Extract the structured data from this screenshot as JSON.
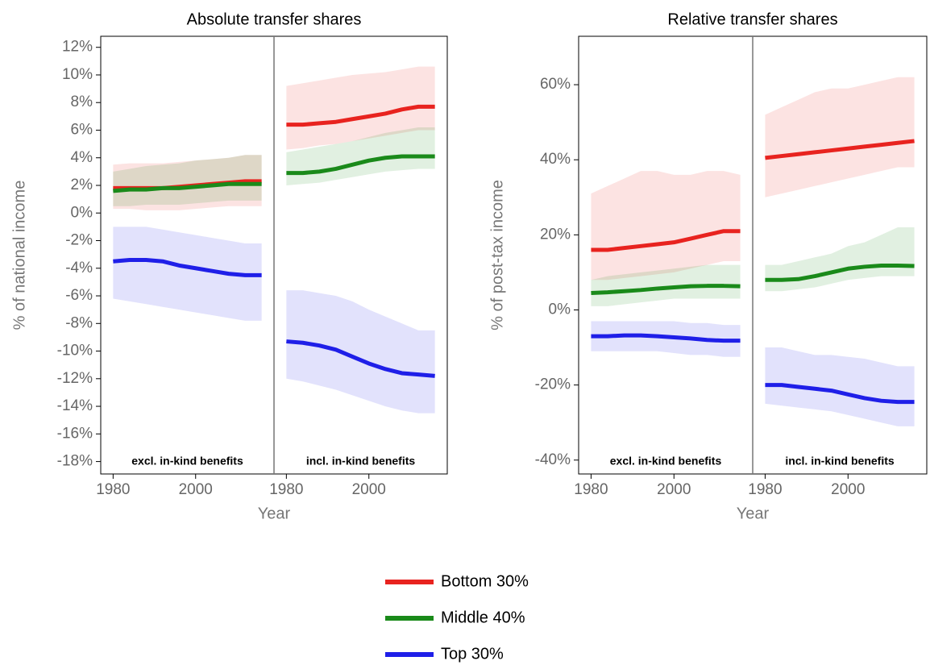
{
  "legend": [
    {
      "name": "Bottom 30%",
      "color": "#e8231f"
    },
    {
      "name": "Middle 40%",
      "color": "#1a8a1a"
    },
    {
      "name": "Top 30%",
      "color": "#1f1fe8"
    }
  ],
  "chart_data": [
    {
      "type": "line",
      "title": "Absolute transfer shares",
      "xlabel": "Year",
      "ylabel": "% of national income",
      "ylim": [
        -18.9,
        12.8
      ],
      "yticks": [
        {
          "value": 12,
          "label": "12%"
        },
        {
          "value": 10,
          "label": "10%"
        },
        {
          "value": 8,
          "label": "8%"
        },
        {
          "value": 6,
          "label": "6%"
        },
        {
          "value": 4,
          "label": "4%"
        },
        {
          "value": 2,
          "label": "2%"
        },
        {
          "value": 0,
          "label": "0%"
        },
        {
          "value": -2,
          "label": "-2%"
        },
        {
          "value": -4,
          "label": "-4%"
        },
        {
          "value": -6,
          "label": "-6%"
        },
        {
          "value": -8,
          "label": "-8%"
        },
        {
          "value": -10,
          "label": "-10%"
        },
        {
          "value": -12,
          "label": "-12%"
        },
        {
          "value": -14,
          "label": "-14%"
        },
        {
          "value": -16,
          "label": "-16%"
        },
        {
          "value": -18,
          "label": "-18%"
        }
      ],
      "xlim": [
        1977,
        2019
      ],
      "xticks": [
        1980,
        2000
      ],
      "x": [
        1980,
        1984,
        1988,
        1992,
        1996,
        2000,
        2004,
        2008,
        2012,
        2016
      ],
      "panels": [
        {
          "label": "excl. in-kind benefits",
          "series": [
            {
              "values": [
                1.8,
                1.8,
                1.8,
                1.8,
                1.9,
                2.0,
                2.1,
                2.2,
                2.3,
                2.3
              ],
              "lower": [
                0.3,
                0.3,
                0.2,
                0.2,
                0.2,
                0.3,
                0.4,
                0.5,
                0.5,
                0.5
              ],
              "upper": [
                3.5,
                3.6,
                3.6,
                3.6,
                3.7,
                3.8,
                3.9,
                4.0,
                4.2,
                4.2
              ]
            },
            {
              "values": [
                1.6,
                1.7,
                1.7,
                1.8,
                1.8,
                1.9,
                2.0,
                2.1,
                2.1,
                2.1
              ],
              "lower": [
                0.5,
                0.5,
                0.6,
                0.6,
                0.6,
                0.7,
                0.8,
                0.9,
                0.9,
                0.9
              ],
              "upper": [
                3.0,
                3.2,
                3.4,
                3.5,
                3.6,
                3.8,
                3.9,
                4.0,
                4.2,
                4.2
              ]
            },
            {
              "values": [
                -3.5,
                -3.4,
                -3.4,
                -3.5,
                -3.8,
                -4.0,
                -4.2,
                -4.4,
                -4.5,
                -4.5
              ],
              "lower": [
                -6.2,
                -6.4,
                -6.6,
                -6.8,
                -7.0,
                -7.2,
                -7.4,
                -7.6,
                -7.8,
                -7.8
              ],
              "upper": [
                -1.0,
                -1.0,
                -1.0,
                -1.2,
                -1.4,
                -1.6,
                -1.8,
                -2.0,
                -2.2,
                -2.2
              ]
            }
          ]
        },
        {
          "label": "incl. in-kind benefits",
          "series": [
            {
              "values": [
                6.4,
                6.4,
                6.5,
                6.6,
                6.8,
                7.0,
                7.2,
                7.5,
                7.7,
                7.7
              ],
              "lower": [
                4.6,
                4.7,
                4.9,
                5.0,
                5.2,
                5.4,
                5.6,
                5.8,
                6.0,
                6.0
              ],
              "upper": [
                9.2,
                9.4,
                9.6,
                9.8,
                10.0,
                10.1,
                10.2,
                10.4,
                10.6,
                10.6
              ]
            },
            {
              "values": [
                2.9,
                2.9,
                3.0,
                3.2,
                3.5,
                3.8,
                4.0,
                4.1,
                4.1,
                4.1
              ],
              "lower": [
                2.0,
                2.1,
                2.2,
                2.4,
                2.6,
                2.8,
                3.0,
                3.1,
                3.2,
                3.2
              ],
              "upper": [
                4.4,
                4.6,
                4.8,
                5.0,
                5.2,
                5.5,
                5.8,
                6.0,
                6.2,
                6.2
              ]
            },
            {
              "values": [
                -9.3,
                -9.4,
                -9.6,
                -9.9,
                -10.4,
                -10.9,
                -11.3,
                -11.6,
                -11.7,
                -11.8
              ],
              "lower": [
                -12.0,
                -12.2,
                -12.5,
                -12.8,
                -13.2,
                -13.6,
                -14.0,
                -14.3,
                -14.5,
                -14.5
              ],
              "upper": [
                -5.6,
                -5.6,
                -5.8,
                -6.0,
                -6.4,
                -7.0,
                -7.5,
                -8.0,
                -8.5,
                -8.5
              ]
            }
          ]
        }
      ]
    },
    {
      "type": "line",
      "title": "Relative transfer shares",
      "xlabel": "Year",
      "ylabel": "% of post-tax income",
      "ylim": [
        -43.7,
        72.9
      ],
      "yticks": [
        {
          "value": 60,
          "label": "60%"
        },
        {
          "value": 40,
          "label": "40%"
        },
        {
          "value": 20,
          "label": "20%"
        },
        {
          "value": 0,
          "label": "0%"
        },
        {
          "value": -20,
          "label": "-20%"
        },
        {
          "value": -40,
          "label": "-40%"
        }
      ],
      "xlim": [
        1977,
        2019
      ],
      "xticks": [
        1980,
        2000
      ],
      "x": [
        1980,
        1984,
        1988,
        1992,
        1996,
        2000,
        2004,
        2008,
        2012,
        2016
      ],
      "panels": [
        {
          "label": "excl. in-kind benefits",
          "series": [
            {
              "values": [
                16,
                16,
                16.5,
                17,
                17.5,
                18,
                19,
                20,
                21,
                21
              ],
              "lower": [
                8,
                8,
                8.5,
                9,
                9.5,
                10,
                11,
                12,
                13,
                13
              ],
              "upper": [
                31,
                33,
                35,
                37,
                37,
                36,
                36,
                37,
                37,
                36
              ]
            },
            {
              "values": [
                4.5,
                4.7,
                5,
                5.3,
                5.7,
                6,
                6.3,
                6.4,
                6.4,
                6.3
              ],
              "lower": [
                1,
                1,
                1.5,
                2,
                2.5,
                3,
                3,
                3,
                3,
                3
              ],
              "upper": [
                8,
                9,
                9.5,
                10,
                10.5,
                11,
                11.5,
                12,
                12,
                12
              ]
            },
            {
              "values": [
                -7,
                -7,
                -6.8,
                -6.8,
                -7,
                -7.3,
                -7.6,
                -8,
                -8.2,
                -8.2
              ],
              "lower": [
                -11,
                -11,
                -11,
                -11,
                -11,
                -11.5,
                -12,
                -12,
                -12.5,
                -12.5
              ],
              "upper": [
                -3,
                -3,
                -3,
                -3,
                -3,
                -3,
                -3.5,
                -3.5,
                -4,
                -4
              ]
            }
          ]
        },
        {
          "label": "incl. in-kind benefits",
          "series": [
            {
              "values": [
                40.5,
                41,
                41.5,
                42,
                42.5,
                43,
                43.5,
                44,
                44.5,
                45
              ],
              "lower": [
                30,
                31,
                32,
                33,
                34,
                35,
                36,
                37,
                38,
                38
              ],
              "upper": [
                52,
                54,
                56,
                58,
                59,
                59,
                60,
                61,
                62,
                62
              ]
            },
            {
              "values": [
                8,
                8,
                8.2,
                9,
                10,
                11,
                11.5,
                11.8,
                11.8,
                11.7
              ],
              "lower": [
                5,
                5,
                5.5,
                6,
                7,
                8,
                8.5,
                9,
                9,
                9
              ],
              "upper": [
                12,
                12,
                13,
                14,
                15,
                17,
                18,
                20,
                22,
                22
              ]
            },
            {
              "values": [
                -20,
                -20,
                -20.5,
                -21,
                -21.5,
                -22.5,
                -23.5,
                -24.2,
                -24.5,
                -24.5
              ],
              "lower": [
                -25,
                -25.5,
                -26,
                -26.5,
                -27,
                -28,
                -29,
                -30,
                -31,
                -31
              ],
              "upper": [
                -10,
                -10,
                -11,
                -12,
                -12,
                -12.5,
                -13,
                -14,
                -15,
                -15
              ]
            }
          ]
        }
      ]
    }
  ]
}
